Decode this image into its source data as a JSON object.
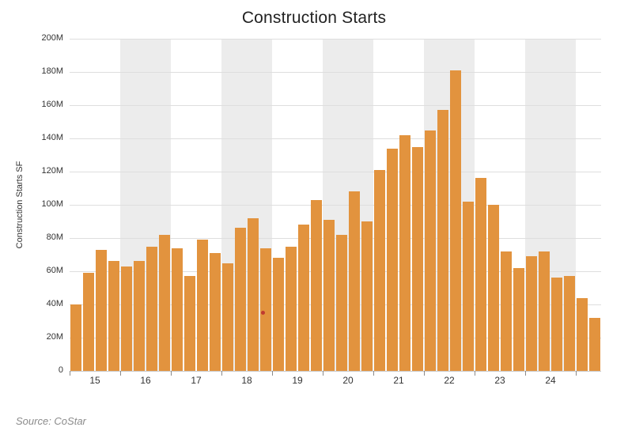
{
  "chart_data": {
    "type": "bar",
    "title": "Construction Starts",
    "ylabel": "Construction Starts SF",
    "xlabel": "",
    "source": "Source: CoStar",
    "unit": "SF",
    "ylim_m": [
      0,
      200
    ],
    "grid": "horizontal",
    "legend": "none",
    "y_tick_labels": [
      "200M",
      "180M",
      "160M",
      "140M",
      "120M",
      "100M",
      "80M",
      "60M",
      "40M",
      "20M",
      "0"
    ],
    "year_labels": [
      "15",
      "16",
      "17",
      "18",
      "19",
      "20",
      "21",
      "22",
      "23",
      "24"
    ],
    "shaded_year_labels": [
      "16",
      "18",
      "20",
      "22",
      "24"
    ],
    "quarters": [
      "2015 Q1",
      "2015 Q2",
      "2015 Q3",
      "2015 Q4",
      "2016 Q1",
      "2016 Q2",
      "2016 Q3",
      "2016 Q4",
      "2017 Q1",
      "2017 Q2",
      "2017 Q3",
      "2017 Q4",
      "2018 Q1",
      "2018 Q2",
      "2018 Q3",
      "2018 Q4",
      "2019 Q1",
      "2019 Q2",
      "2019 Q3",
      "2019 Q4",
      "2020 Q1",
      "2020 Q2",
      "2020 Q3",
      "2020 Q4",
      "2021 Q1",
      "2021 Q2",
      "2021 Q3",
      "2021 Q4",
      "2022 Q1",
      "2022 Q2",
      "2022 Q3",
      "2022 Q4",
      "2023 Q1",
      "2023 Q2",
      "2023 Q3",
      "2023 Q4",
      "2024 Q1",
      "2024 Q2",
      "2024 Q3",
      "2024 Q4",
      "2025 Q1",
      "2025 Q2"
    ],
    "values_m": [
      40,
      59,
      73,
      66,
      63,
      66,
      75,
      82,
      74,
      57,
      79,
      71,
      65,
      86,
      92,
      74,
      68,
      75,
      88,
      103,
      91,
      82,
      108,
      90,
      121,
      134,
      142,
      135,
      145,
      157,
      181,
      102,
      116,
      100,
      72,
      62,
      69,
      72,
      56,
      57,
      44,
      32
    ],
    "annotation_dot": {
      "quarter": "2018 Q4",
      "quarter_index": 15,
      "value_m": 35
    },
    "colors": {
      "bar": "#e2933e",
      "band": "#ececec",
      "grid": "#dedede",
      "axis_line": "#c8c8c8",
      "axis_tick": "#8a8a8a",
      "tick_text": "#333333",
      "title_text": "#222222",
      "source_text": "#8b8b8b",
      "dot": "#c03a30",
      "background": "#ffffff"
    }
  }
}
